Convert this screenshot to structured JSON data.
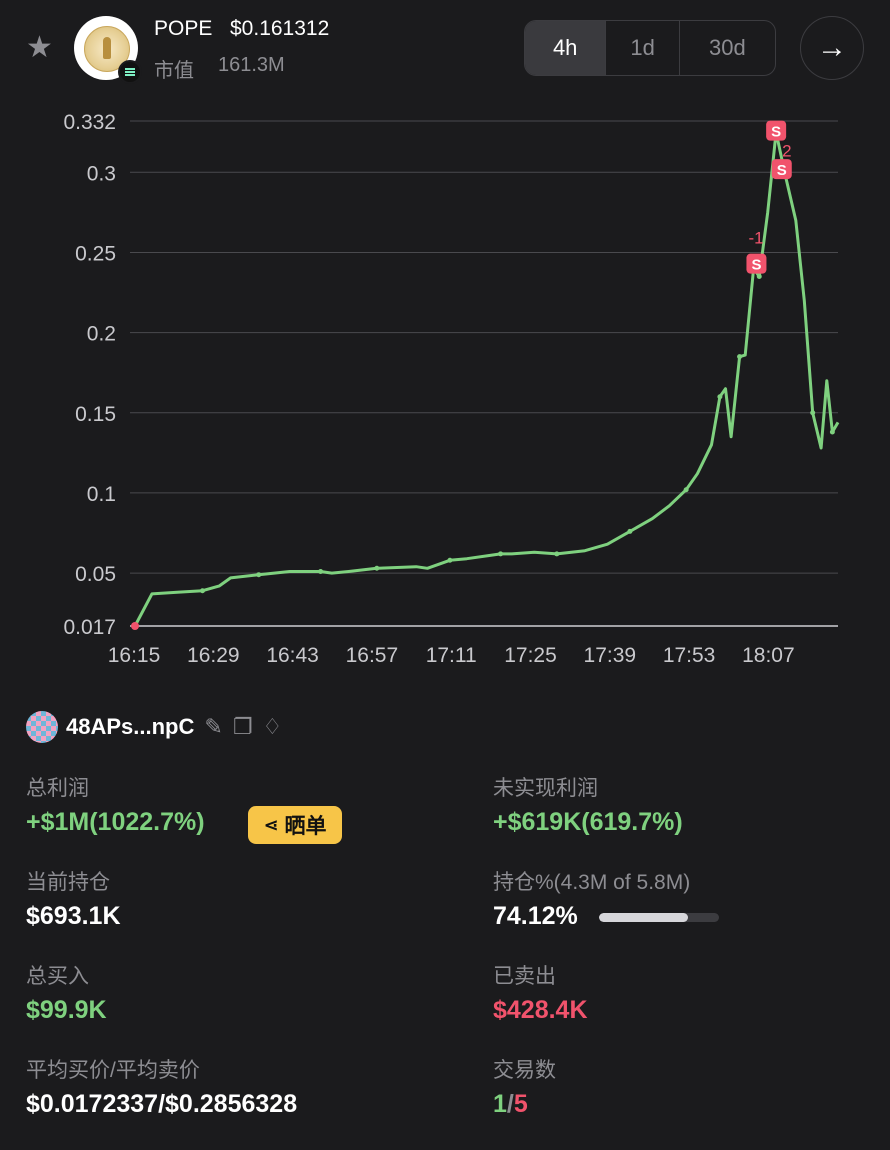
{
  "header": {
    "ticker": "POPE",
    "price": "$0.161312",
    "market_cap_label": "市值",
    "market_cap_value": "161.3M",
    "timeframes": [
      "4h",
      "1d",
      "30d"
    ],
    "active_timeframe": "4h",
    "icons": {
      "favorite": "star-icon",
      "navigate": "arrow-right-icon",
      "chain": "solana-icon"
    }
  },
  "chart_data": {
    "type": "line",
    "x_ticks": [
      "16:15",
      "16:29",
      "16:43",
      "16:57",
      "17:11",
      "17:25",
      "17:39",
      "17:53",
      "18:07"
    ],
    "y_ticks": [
      "0.017",
      "0.05",
      "0.1",
      "0.15",
      "0.2",
      "0.25",
      "0.3",
      "0.332"
    ],
    "ylim": [
      0.017,
      0.332
    ],
    "grid": true,
    "line_color": "#7fd17f",
    "series": [
      {
        "values": [
          [
            0,
            0.017
          ],
          [
            6,
            0.037
          ],
          [
            15,
            0.038
          ],
          [
            24,
            0.039
          ],
          [
            30,
            0.042
          ],
          [
            34,
            0.047
          ],
          [
            44,
            0.049
          ],
          [
            55,
            0.051
          ],
          [
            60,
            0.051
          ],
          [
            66,
            0.051
          ],
          [
            70,
            0.05
          ],
          [
            76,
            0.051
          ],
          [
            86,
            0.053
          ],
          [
            100,
            0.054
          ],
          [
            104,
            0.053
          ],
          [
            112,
            0.058
          ],
          [
            118,
            0.059
          ],
          [
            126,
            0.061
          ],
          [
            130,
            0.062
          ],
          [
            134,
            0.062
          ],
          [
            142,
            0.063
          ],
          [
            150,
            0.062
          ],
          [
            160,
            0.064
          ],
          [
            168,
            0.068
          ],
          [
            176,
            0.076
          ],
          [
            184,
            0.084
          ],
          [
            190,
            0.092
          ],
          [
            196,
            0.102
          ],
          [
            200,
            0.112
          ],
          [
            205,
            0.13
          ],
          [
            208,
            0.16
          ],
          [
            210,
            0.165
          ],
          [
            212,
            0.135
          ],
          [
            215,
            0.185
          ],
          [
            217,
            0.186
          ],
          [
            220,
            0.24
          ],
          [
            222,
            0.235
          ],
          [
            225,
            0.275
          ],
          [
            228,
            0.325
          ],
          [
            231,
            0.3
          ],
          [
            235,
            0.27
          ],
          [
            238,
            0.22
          ],
          [
            241,
            0.15
          ],
          [
            244,
            0.128
          ],
          [
            246,
            0.17
          ],
          [
            248,
            0.138
          ],
          [
            250,
            0.144
          ]
        ]
      }
    ],
    "markers": [
      {
        "x": 221,
        "y": 0.243,
        "text": "S",
        "tag": "-1"
      },
      {
        "x": 228,
        "y": 0.326,
        "text": "S",
        "tag": "2"
      },
      {
        "x": 230,
        "y": 0.302,
        "text": "S",
        "tag": ""
      }
    ],
    "start_marker_color": "#f1536c",
    "marker_color": "#f1536c"
  },
  "wallet": {
    "name": "48APs...npC",
    "icons": [
      "edit-icon",
      "copy-icon",
      "diamond-icon"
    ]
  },
  "stats": {
    "total_profit_label": "总利润",
    "total_profit_value": "+$1M(1022.7%)",
    "share_label": "晒单",
    "unrealized_label": "未实现利润",
    "unrealized_value": "+$619K(619.7%)",
    "position_label": "当前持仓",
    "position_value": "$693.1K",
    "holding_label": "持仓%(4.3M of 5.8M)",
    "holding_value": "74.12%",
    "holding_fraction": 0.7412,
    "bought_label": "总买入",
    "bought_value": "$99.9K",
    "sold_label": "已卖出",
    "sold_value": "$428.4K",
    "avg_label": "平均买价/平均卖价",
    "avg_value": "$0.0172337/$0.2856328",
    "trades_label": "交易数",
    "trades_buy": "1",
    "trades_sep": "/",
    "trades_sell": "5"
  }
}
